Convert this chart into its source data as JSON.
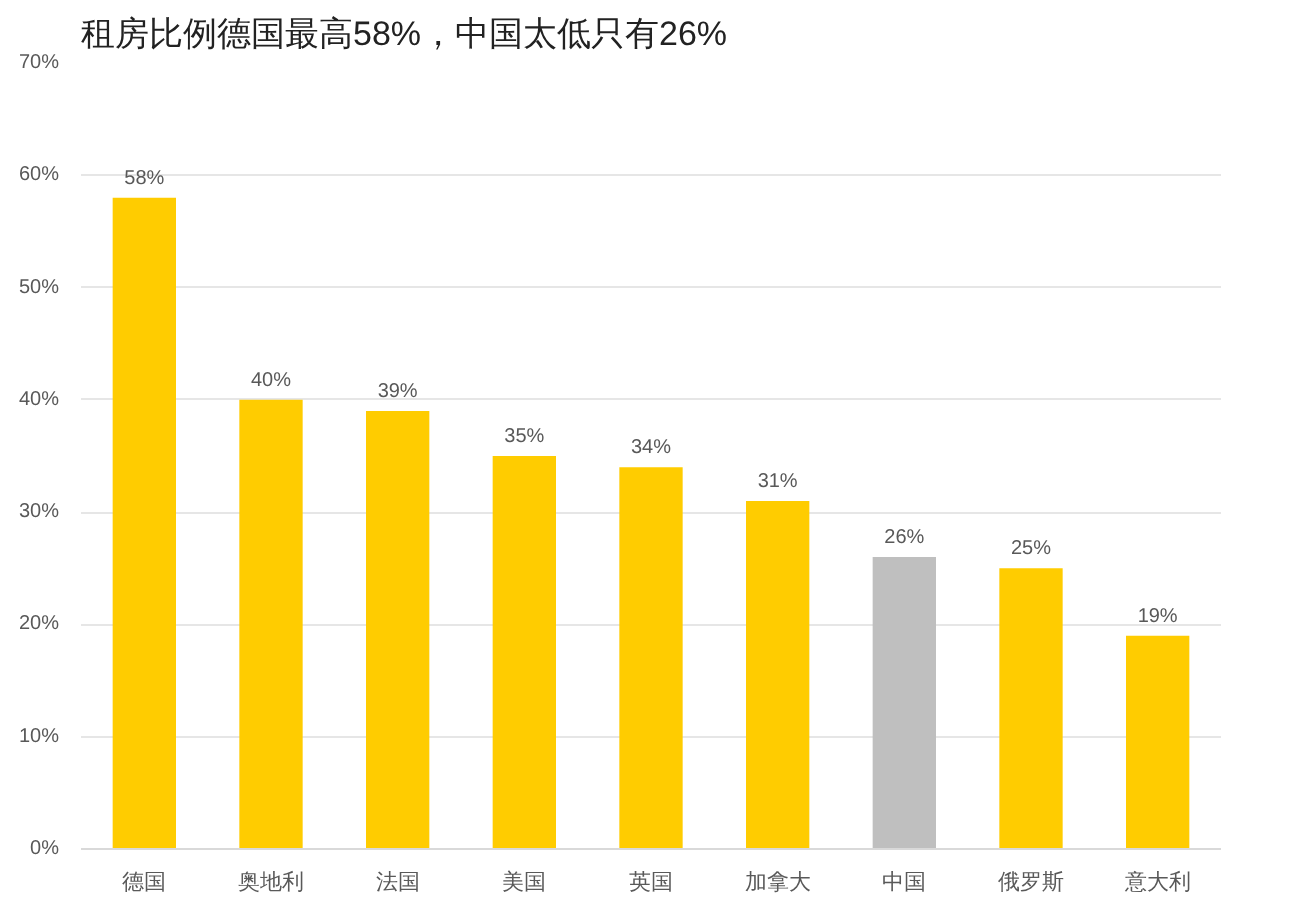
{
  "chart_data": {
    "type": "bar",
    "title": "租房比例德国最高58%，中国太低只有26%",
    "categories": [
      "德国",
      "奥地利",
      "法国",
      "美国",
      "英国",
      "加拿大",
      "中国",
      "俄罗斯",
      "意大利"
    ],
    "values": [
      58,
      40,
      39,
      35,
      34,
      31,
      26,
      25,
      19
    ],
    "colors": [
      "#ffcc00",
      "#ffcc00",
      "#ffcc00",
      "#ffcc00",
      "#ffcc00",
      "#ffcc00",
      "#bfbfbf",
      "#ffcc00",
      "#ffcc00"
    ],
    "value_labels": [
      "58%",
      "40%",
      "39%",
      "35%",
      "34%",
      "31%",
      "26%",
      "25%",
      "19%"
    ],
    "ylim": [
      0,
      70
    ],
    "yticks": [
      {
        "value": 0,
        "label": "0%"
      },
      {
        "value": 10,
        "label": "10%"
      },
      {
        "value": 20,
        "label": "20%"
      },
      {
        "value": 30,
        "label": "30%"
      },
      {
        "value": 40,
        "label": "40%"
      },
      {
        "value": 50,
        "label": "50%"
      },
      {
        "value": 60,
        "label": "60%"
      },
      {
        "value": 70,
        "label": "70%"
      }
    ],
    "grid": "y"
  }
}
